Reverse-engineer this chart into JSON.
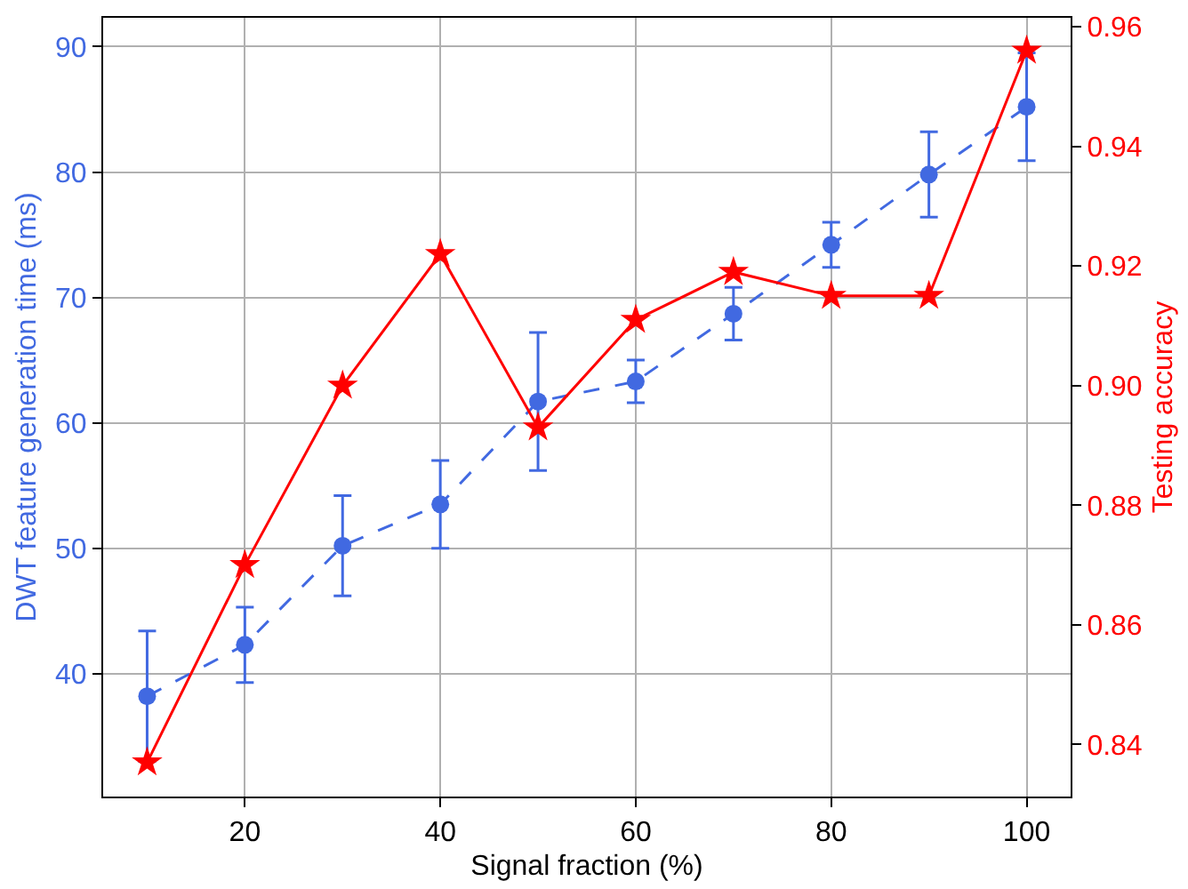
{
  "chart_data": {
    "type": "line",
    "xlabel": "Signal fraction (%)",
    "ylabel": "DWT feature generation time (ms)",
    "y2label": "Testing accuracy",
    "x": [
      10,
      20,
      30,
      40,
      50,
      60,
      70,
      80,
      90,
      100
    ],
    "xlim": [
      5.5,
      104.5
    ],
    "xticks": [
      20,
      40,
      60,
      80,
      100
    ],
    "ylim": [
      30.2,
      92.3
    ],
    "yticks": [
      40,
      50,
      60,
      70,
      80,
      90
    ],
    "y2lim": [
      0.8313,
      0.9615
    ],
    "y2ticks": [
      {
        "value": 0.84,
        "label": "0.84"
      },
      {
        "value": 0.86,
        "label": "0.86"
      },
      {
        "value": 0.88,
        "label": "0.88"
      },
      {
        "value": 0.9,
        "label": "0.90"
      },
      {
        "value": 0.92,
        "label": "0.92"
      },
      {
        "value": 0.94,
        "label": "0.94"
      },
      {
        "value": 0.96,
        "label": "0.96"
      }
    ],
    "grid": true,
    "series": [
      {
        "color": "#4169e1",
        "marker": "circle",
        "line_style": "dashed",
        "values": [
          38.2,
          42.3,
          50.2,
          53.5,
          61.7,
          63.3,
          68.7,
          74.2,
          79.8,
          85.2
        ],
        "errors": [
          5.2,
          3.0,
          4.0,
          3.5,
          5.5,
          1.7,
          2.1,
          1.8,
          3.4,
          4.3
        ]
      },
      {
        "color": "#ff0000",
        "marker": "star",
        "line_style": "solid",
        "axis": "y2",
        "values": [
          0.837,
          0.87,
          0.9,
          0.922,
          0.893,
          0.911,
          0.919,
          0.915,
          0.915,
          0.956
        ]
      }
    ]
  }
}
